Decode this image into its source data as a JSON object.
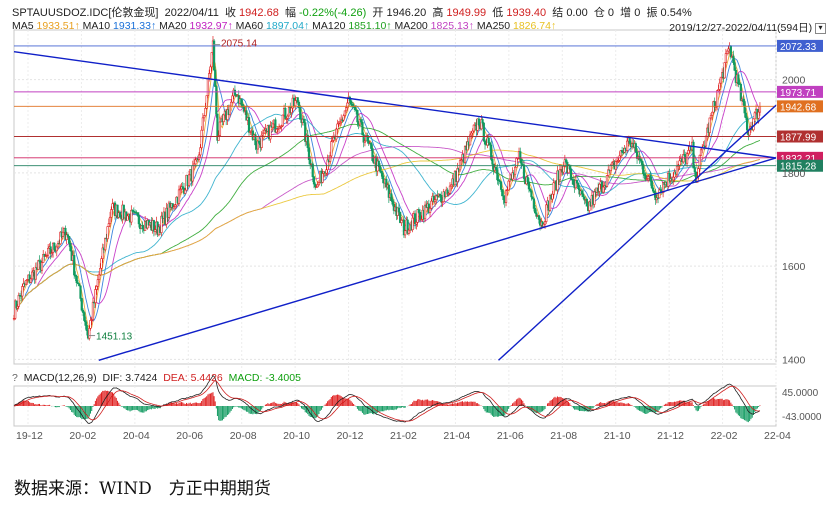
{
  "header": {
    "symbol": "SPTAUUSDOZ.IDC[伦敦金现]",
    "date": "2022/04/11",
    "close_label": "收",
    "close": "1942.68",
    "change_label": "幅",
    "change": "-0.22%(-4.26)",
    "open_label": "开",
    "open": "1946.20",
    "high_label": "高",
    "high": "1949.99",
    "low_label": "低",
    "low": "1939.40",
    "settle_label": "结",
    "settle": "0.00",
    "oi_label": "仓",
    "oi": "0",
    "oi_change_label": "增",
    "oi_change": "0",
    "amplitude_label": "振",
    "amplitude": "0.54%",
    "range": "2019/12/27-2022/04/11(594日)"
  },
  "ma_legend": [
    {
      "label": "MA5",
      "value": "1933.51↑",
      "color": "#e8a020"
    },
    {
      "label": "MA10",
      "value": "1931.33↑",
      "color": "#1a70d8"
    },
    {
      "label": "MA20",
      "value": "1932.97↑",
      "color": "#c020c0"
    },
    {
      "label": "MA60",
      "value": "1897.04↑",
      "color": "#20a8c8"
    },
    {
      "label": "MA120",
      "value": "1851.10↑",
      "color": "#20a020"
    },
    {
      "label": "MA200",
      "value": "1825.13↑",
      "color": "#c040c0"
    },
    {
      "label": "MA250",
      "value": "1826.74↑",
      "color": "#e8c020"
    }
  ],
  "macd_legend": {
    "label": "MACD(12,26,9)",
    "dif": "DIF: 3.7424",
    "dea": "DEA: 5.4426",
    "macd": "MACD: -3.4005"
  },
  "chart_data": {
    "type": "candlestick",
    "x_ticks": [
      "19-12",
      "20-02",
      "20-04",
      "20-06",
      "20-08",
      "20-10",
      "20-12",
      "21-02",
      "21-04",
      "21-06",
      "21-08",
      "21-10",
      "21-12",
      "22-02",
      "22-04"
    ],
    "y_ticks": [
      2000,
      1800,
      1600,
      1400
    ],
    "ylim": [
      1390,
      2100
    ],
    "macd_ticks": [
      "45.0000",
      "-43.0000"
    ],
    "annotations": {
      "high": "2075.14",
      "low": "1451.13"
    },
    "price_tags": [
      {
        "value": 2072.33,
        "label": "2072.33",
        "color": "#4060d0"
      },
      {
        "value": 1973.71,
        "label": "1973.71",
        "color": "#c040c0"
      },
      {
        "value": 1942.68,
        "label": "1942.68",
        "color": "#e07020"
      },
      {
        "value": 1877.99,
        "label": "1877.99",
        "color": "#b03030"
      },
      {
        "value": 1832.21,
        "label": "1832.21",
        "color": "#d02060"
      },
      {
        "value": 1815.28,
        "label": "1815.28",
        "color": "#208060"
      }
    ],
    "anchors": [
      {
        "x": "2019-12-27",
        "y": 1505
      },
      {
        "x": "2020-01-08",
        "y": 1560
      },
      {
        "x": "2020-02-24",
        "y": 1675
      },
      {
        "x": "2020-03-19",
        "y": 1451
      },
      {
        "x": "2020-04-14",
        "y": 1725
      },
      {
        "x": "2020-06-05",
        "y": 1680
      },
      {
        "x": "2020-07-20",
        "y": 1820
      },
      {
        "x": "2020-08-06",
        "y": 2075
      },
      {
        "x": "2020-08-11",
        "y": 1880
      },
      {
        "x": "2020-09-01",
        "y": 1975
      },
      {
        "x": "2020-09-24",
        "y": 1860
      },
      {
        "x": "2020-11-09",
        "y": 1955
      },
      {
        "x": "2020-11-30",
        "y": 1765
      },
      {
        "x": "2021-01-05",
        "y": 1955
      },
      {
        "x": "2021-03-08",
        "y": 1680
      },
      {
        "x": "2021-04-30",
        "y": 1770
      },
      {
        "x": "2021-05-31",
        "y": 1915
      },
      {
        "x": "2021-06-29",
        "y": 1750
      },
      {
        "x": "2021-07-15",
        "y": 1830
      },
      {
        "x": "2021-08-09",
        "y": 1690
      },
      {
        "x": "2021-09-03",
        "y": 1825
      },
      {
        "x": "2021-09-29",
        "y": 1722
      },
      {
        "x": "2021-11-16",
        "y": 1870
      },
      {
        "x": "2021-12-15",
        "y": 1755
      },
      {
        "x": "2022-01-25",
        "y": 1850
      },
      {
        "x": "2022-01-28",
        "y": 1785
      },
      {
        "x": "2022-03-08",
        "y": 2070
      },
      {
        "x": "2022-03-29",
        "y": 1890
      },
      {
        "x": "2022-04-11",
        "y": 1942.68
      }
    ],
    "trendlines": [
      {
        "x1": "2019-12-27",
        "y1": 2060,
        "x2": "2022-04-29",
        "y2": 1832
      },
      {
        "x1": "2020-03-31",
        "y1": 1398,
        "x2": "2022-04-29",
        "y2": 1832
      },
      {
        "x1": "2021-06-22",
        "y1": 1398,
        "x2": "2022-04-29",
        "y2": 1945
      }
    ]
  },
  "footer": {
    "source": "数据来源：WIND　方正中期期货"
  }
}
